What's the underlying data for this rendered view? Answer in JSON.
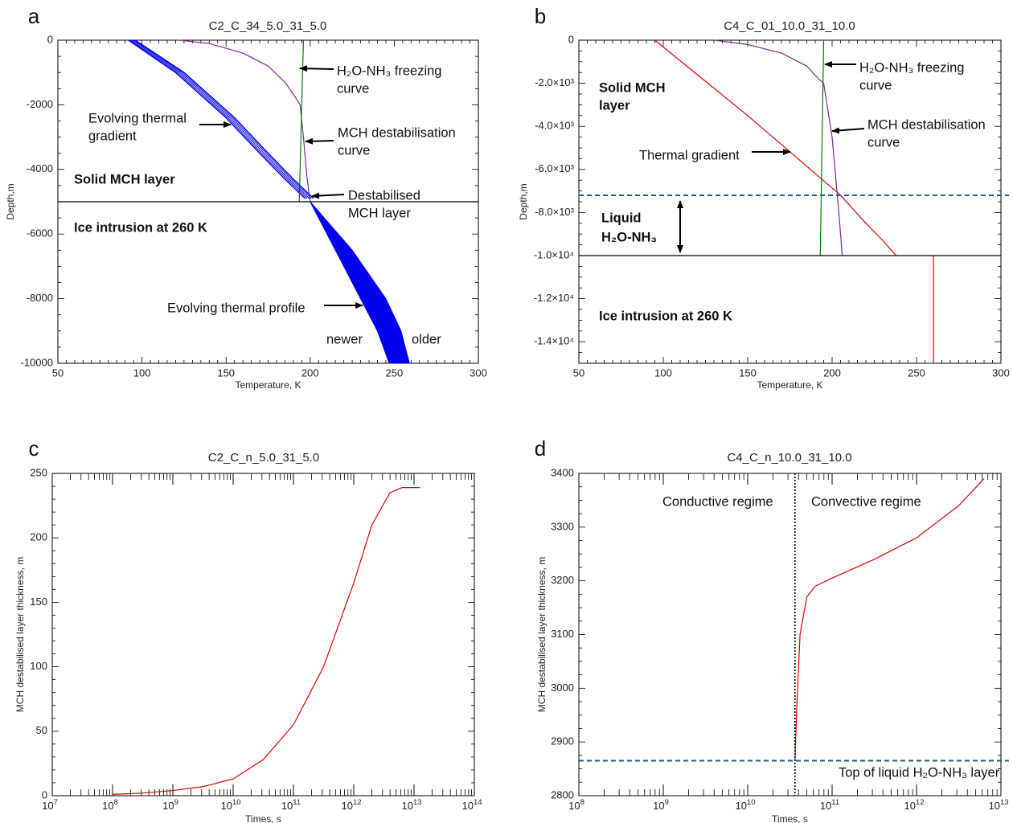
{
  "chart_data": [
    {
      "letter": "a",
      "type": "line",
      "title": "C2_C_34_5.0_31_5.0",
      "xlabel": "Temperature, K",
      "ylabel": "Depth,m",
      "xlim": [
        50,
        300
      ],
      "ylim": [
        -10000,
        0
      ],
      "xticks": [
        {
          "v": 50,
          "t": "50"
        },
        {
          "v": 100,
          "t": "100"
        },
        {
          "v": 150,
          "t": "150"
        },
        {
          "v": 200,
          "t": "200"
        },
        {
          "v": 250,
          "t": "250"
        },
        {
          "v": 300,
          "t": "300"
        }
      ],
      "yticks": [
        {
          "v": 0,
          "t": "0"
        },
        {
          "v": -2000,
          "t": "-2000"
        },
        {
          "v": -4000,
          "t": "-4000"
        },
        {
          "v": -6000,
          "t": "-6000"
        },
        {
          "v": -8000,
          "t": "-8000"
        },
        {
          "v": -10000,
          "t": "-10000"
        }
      ],
      "series": [
        {
          "name": "Thermal gradient (newer)",
          "color": "#0000ee",
          "width": 1.5,
          "x": [
            92,
            120,
            150,
            170,
            185,
            197
          ],
          "y": [
            0,
            -1000,
            -2400,
            -3500,
            -4300,
            -4900
          ]
        },
        {
          "name": "Thermal gradient (older)",
          "color": "#0000ee",
          "width": 1.5,
          "x": [
            96,
            125,
            155,
            175,
            190,
            202
          ],
          "y": [
            0,
            -1000,
            -2400,
            -3500,
            -4300,
            -4900
          ]
        },
        {
          "name": "MCH destabilisation curve",
          "color": "#7b2d8b",
          "width": 1.2,
          "x": [
            122,
            140,
            160,
            175,
            185,
            191,
            194,
            196,
            198,
            200
          ],
          "y": [
            0,
            -100,
            -400,
            -800,
            -1300,
            -1750,
            -2000,
            -3000,
            -4200,
            -5000
          ]
        },
        {
          "name": "H2O-NH3 freezing curve",
          "color": "#008000",
          "width": 1.2,
          "x": [
            196,
            193.5
          ],
          "y": [
            0,
            -5000
          ]
        },
        {
          "name": "Ice intrusion boundary",
          "color": "#000000",
          "width": 1.2,
          "x": [
            50,
            300
          ],
          "y": [
            -5000,
            -5000
          ]
        }
      ],
      "band": {
        "name": "Evolving thermal profile",
        "color": "#0000ee",
        "x_left": [
          200,
          215,
          230,
          240,
          247
        ],
        "x_right": [
          200,
          225,
          245,
          254,
          259
        ],
        "y": [
          -5000,
          -6500,
          -8000,
          -9000,
          -10000
        ]
      },
      "annotations": [
        {
          "id": "freezing",
          "lines": [
            "H₂O-NH₃ freezing",
            "curve"
          ],
          "bold": false
        },
        {
          "id": "grad",
          "lines": [
            "Evolving thermal",
            "gradient"
          ],
          "bold": false
        },
        {
          "id": "destab",
          "lines": [
            "MCH destabilisation",
            "curve"
          ],
          "bold": false
        },
        {
          "id": "solid",
          "lines": [
            "Solid MCH layer"
          ],
          "bold": true
        },
        {
          "id": "dlayer",
          "lines": [
            "Destabilised",
            "MCH layer"
          ],
          "bold": false
        },
        {
          "id": "ice",
          "lines": [
            "Ice intrusion at 260 K"
          ],
          "bold": true
        },
        {
          "id": "profile",
          "lines": [
            "Evolving thermal profile"
          ],
          "bold": false
        },
        {
          "id": "newer",
          "lines": [
            "newer"
          ],
          "bold": false
        },
        {
          "id": "older",
          "lines": [
            "older"
          ],
          "bold": false
        }
      ]
    },
    {
      "letter": "b",
      "type": "line",
      "title": "C4_C_01_10.0_31_10.0",
      "xlabel": "Temperature, K",
      "ylabel": "Depth,m",
      "xlim": [
        50,
        300
      ],
      "ylim": [
        -15000,
        0
      ],
      "xticks": [
        {
          "v": 50,
          "t": "50"
        },
        {
          "v": 100,
          "t": "100"
        },
        {
          "v": 150,
          "t": "150"
        },
        {
          "v": 200,
          "t": "200"
        },
        {
          "v": 250,
          "t": "250"
        },
        {
          "v": 300,
          "t": "300"
        }
      ],
      "yticks": [
        {
          "v": 0,
          "t": "0"
        },
        {
          "v": -2000,
          "t": "-2.0×10³"
        },
        {
          "v": -4000,
          "t": "-4.0×10³"
        },
        {
          "v": -6000,
          "t": "-6.0×10³"
        },
        {
          "v": -8000,
          "t": "-8.0×10³"
        },
        {
          "v": -10000,
          "t": "-1.0×10⁴"
        },
        {
          "v": -12000,
          "t": "-1.2×10⁴"
        },
        {
          "v": -14000,
          "t": "-1.4×10⁴"
        }
      ],
      "series": [
        {
          "name": "Thermal gradient",
          "color": "#dd0000",
          "width": 1.2,
          "x": [
            95,
            150,
            205,
            220,
            230,
            238
          ],
          "y": [
            0,
            -3500,
            -7200,
            -8500,
            -9300,
            -10000
          ]
        },
        {
          "name": "Ice intrusion thermal profile",
          "color": "#dd0000",
          "width": 1.2,
          "x": [
            260,
            260
          ],
          "y": [
            -10000,
            -15000
          ]
        },
        {
          "name": "MCH destabilisation curve",
          "color": "#7b2d8b",
          "width": 1.2,
          "x": [
            130,
            150,
            170,
            185,
            192,
            195,
            200,
            204,
            206
          ],
          "y": [
            0,
            -200,
            -600,
            -1200,
            -1800,
            -2000,
            -4500,
            -8000,
            -10000
          ]
        },
        {
          "name": "H2O-NH3 freezing curve",
          "color": "#008000",
          "width": 1.2,
          "x": [
            195,
            193
          ],
          "y": [
            0,
            -10000
          ]
        },
        {
          "name": "Ice intrusion boundary",
          "color": "#000000",
          "width": 1.2,
          "x": [
            50,
            300
          ],
          "y": [
            -10000,
            -10000
          ]
        }
      ],
      "hlines": [
        {
          "name": "Top of liquid layer",
          "y": -7200,
          "color": "#1f5f7a"
        }
      ],
      "annotations": [
        {
          "id": "freezing",
          "lines": [
            "H₂O-NH₃ freezing",
            "curve"
          ],
          "bold": false
        },
        {
          "id": "solid",
          "lines": [
            "Solid MCH",
            "layer"
          ],
          "bold": true
        },
        {
          "id": "destab",
          "lines": [
            "MCH destabilisation",
            "curve"
          ],
          "bold": false
        },
        {
          "id": "grad",
          "lines": [
            "Thermal gradient"
          ],
          "bold": false
        },
        {
          "id": "liquid",
          "lines": [
            "Liquid",
            "H₂O-NH₃"
          ],
          "bold": true
        },
        {
          "id": "ice",
          "lines": [
            "Ice intrusion at 260 K"
          ],
          "bold": true
        }
      ]
    },
    {
      "letter": "c",
      "type": "line",
      "title": "C2_C_n_5.0_31_5.0",
      "xlabel": "Times, s",
      "ylabel": "MCH destabilised layer thickness, m",
      "xscale": "log",
      "xlim": [
        7,
        14
      ],
      "ylim": [
        0,
        250
      ],
      "xticks": [
        {
          "v": 7,
          "b": "10",
          "e": "7"
        },
        {
          "v": 8,
          "b": "10",
          "e": "8"
        },
        {
          "v": 9,
          "b": "10",
          "e": "9"
        },
        {
          "v": 10,
          "b": "10",
          "e": "10"
        },
        {
          "v": 11,
          "b": "10",
          "e": "11"
        },
        {
          "v": 12,
          "b": "10",
          "e": "12"
        },
        {
          "v": 13,
          "b": "10",
          "e": "13"
        },
        {
          "v": 14,
          "b": "10",
          "e": "14"
        }
      ],
      "yticks": [
        {
          "v": 0,
          "t": "0"
        },
        {
          "v": 50,
          "t": "50"
        },
        {
          "v": 100,
          "t": "100"
        },
        {
          "v": 150,
          "t": "150"
        },
        {
          "v": 200,
          "t": "200"
        },
        {
          "v": 250,
          "t": "250"
        }
      ],
      "series": [
        {
          "name": "MCH destabilised layer thickness",
          "color": "#dd0000",
          "width": 1.2,
          "log10_x": [
            8.0,
            8.5,
            9.0,
            9.5,
            10.0,
            10.5,
            11.0,
            11.5,
            12.0,
            12.3,
            12.6,
            12.8,
            13.1
          ],
          "y": [
            1,
            2,
            4,
            7,
            13,
            28,
            55,
            100,
            165,
            210,
            235,
            239,
            239
          ]
        }
      ],
      "annotations": []
    },
    {
      "letter": "d",
      "type": "line",
      "title": "C4_C_n_10.0_31_10.0",
      "xlabel": "Times, s",
      "ylabel": "MCH destabilised layer thickness, m",
      "xscale": "log",
      "xlim": [
        8,
        13
      ],
      "ylim": [
        2800,
        3400
      ],
      "xticks": [
        {
          "v": 8,
          "b": "10",
          "e": "8"
        },
        {
          "v": 9,
          "b": "10",
          "e": "9"
        },
        {
          "v": 10,
          "b": "10",
          "e": "10"
        },
        {
          "v": 11,
          "b": "10",
          "e": "11"
        },
        {
          "v": 12,
          "b": "10",
          "e": "12"
        },
        {
          "v": 13,
          "b": "10",
          "e": "13"
        }
      ],
      "yticks": [
        {
          "v": 2800,
          "t": "2800"
        },
        {
          "v": 2900,
          "t": "2900"
        },
        {
          "v": 3000,
          "t": "3000"
        },
        {
          "v": 3100,
          "t": "3100"
        },
        {
          "v": 3200,
          "t": "3200"
        },
        {
          "v": 3300,
          "t": "3300"
        },
        {
          "v": 3400,
          "t": "3400"
        }
      ],
      "series": [
        {
          "name": "MCH destabilised layer thickness",
          "color": "#dd0000",
          "width": 1.2,
          "log10_x": [
            10.56,
            10.58,
            10.62,
            10.7,
            10.8,
            11.0,
            11.5,
            12.0,
            12.5,
            12.8
          ],
          "y": [
            2865,
            2960,
            3100,
            3170,
            3190,
            3205,
            3240,
            3280,
            3340,
            3390
          ]
        }
      ],
      "hlines": [
        {
          "name": "Top of liquid H2O-NH3 layer",
          "y": 2865,
          "color": "#1f5f7a"
        }
      ],
      "vlines": [
        {
          "name": "Regime transition",
          "log10_x": 10.56,
          "color": "#000000"
        }
      ],
      "annotations": [
        {
          "id": "cond",
          "lines": [
            "Conductive regime"
          ],
          "bold": false
        },
        {
          "id": "conv",
          "lines": [
            "Convective regime"
          ],
          "bold": false
        },
        {
          "id": "top",
          "lines": [
            "Top of liquid H₂O-NH₃ layer"
          ],
          "bold": false
        }
      ]
    }
  ]
}
